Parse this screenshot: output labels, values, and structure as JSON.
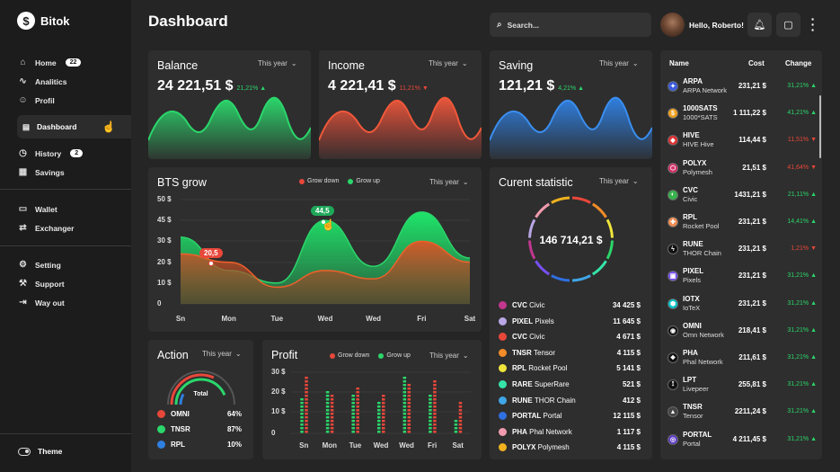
{
  "app": {
    "name": "Bitok"
  },
  "sidebar": {
    "group1": [
      {
        "label": "Home",
        "badge": "22",
        "icon": "home-icon"
      },
      {
        "label": "Analitics",
        "icon": "analytics-icon"
      },
      {
        "label": "Profil",
        "icon": "user-icon"
      }
    ],
    "active": {
      "label": "Dashboard",
      "icon": "dashboard-icon"
    },
    "group2": [
      {
        "label": "History",
        "badge": "2",
        "icon": "history-icon"
      },
      {
        "label": "Savings",
        "icon": "savings-icon"
      }
    ],
    "group3": [
      {
        "label": "Wallet",
        "icon": "wallet-icon"
      },
      {
        "label": "Exchanger",
        "icon": "exchange-icon"
      }
    ],
    "group4": [
      {
        "label": "Setting",
        "icon": "gear-icon"
      },
      {
        "label": "Support",
        "icon": "support-icon"
      },
      {
        "label": "Way out",
        "icon": "logout-icon"
      }
    ],
    "theme_label": "Theme"
  },
  "header": {
    "title": "Dashboard",
    "search_placeholder": "Search...",
    "greeting": "Hello, Roberto!"
  },
  "cards": {
    "balance": {
      "title": "Balance",
      "period": "This year",
      "value": "24 221,51 $",
      "pct": "21,21%",
      "trend": "up",
      "color": "#2bd66b"
    },
    "income": {
      "title": "Income",
      "period": "This year",
      "value": "4 221,41 $",
      "pct": "11,21%",
      "trend": "down",
      "color": "#e8473a"
    },
    "saving": {
      "title": "Saving",
      "period": "This year",
      "value": "121,21 $",
      "pct": "4,21%",
      "trend": "up",
      "color": "#2f7fe0"
    }
  },
  "bts": {
    "title": "BTS grow",
    "period": "This year",
    "legend_down": "Grow down",
    "legend_up": "Grow up",
    "chart_data": {
      "type": "area",
      "categories": [
        "Sn",
        "Mon",
        "Tue",
        "Wed",
        "Wed",
        "Fri",
        "Sat"
      ],
      "ylim": [
        0,
        50
      ],
      "yticks": [
        "50 $",
        "45 $",
        "30 $",
        "20 $",
        "10 $",
        "0"
      ],
      "series": [
        {
          "name": "Grow up",
          "values": [
            32,
            16,
            10,
            40,
            18,
            44,
            22
          ]
        },
        {
          "name": "Grow down",
          "values": [
            24,
            20,
            8,
            16,
            12,
            30,
            20
          ]
        }
      ],
      "annotations": [
        "20,5",
        "44,5"
      ]
    }
  },
  "statistic": {
    "title": "Curent statistic",
    "period": "This year",
    "total": "146 714,21 $",
    "rows": [
      {
        "sym": "CVC",
        "name": "Civic",
        "value": "34 425 $",
        "color": "#c2378f"
      },
      {
        "sym": "PIXEL",
        "name": "Pixels",
        "value": "11 645 $",
        "color": "#b9a7e6"
      },
      {
        "sym": "CVC",
        "name": "Civic",
        "value": "4 671 $",
        "color": "#e8473a"
      },
      {
        "sym": "TNSR",
        "name": "Tensor",
        "value": "4 115 $",
        "color": "#f28c28"
      },
      {
        "sym": "RPL",
        "name": "Rocket Pool",
        "value": "5 141 $",
        "color": "#f1e53b"
      },
      {
        "sym": "RARE",
        "name": "SuperRare",
        "value": "521 $",
        "color": "#36e3a8"
      },
      {
        "sym": "RUNE",
        "name": "THOR Chain",
        "value": "412 $",
        "color": "#3fa6e8"
      },
      {
        "sym": "PORTAL",
        "name": "Portal",
        "value": "12 115 $",
        "color": "#2f6fe0"
      },
      {
        "sym": "PHA",
        "name": "Phal Network",
        "value": "1 117 $",
        "color": "#f09cae"
      },
      {
        "sym": "POLYX",
        "name": "Polymesh",
        "value": "4 115 $",
        "color": "#f0b21f"
      }
    ]
  },
  "action": {
    "title": "Action",
    "period": "This year",
    "center": "Total",
    "rows": [
      {
        "label": "OMNI",
        "value": "64%",
        "color": "#e8473a"
      },
      {
        "label": "TNSR",
        "value": "87%",
        "color": "#2bd66b"
      },
      {
        "label": "RPL",
        "value": "10%",
        "color": "#2f7fe0"
      }
    ]
  },
  "profit": {
    "title": "Profit",
    "period": "This year",
    "legend_down": "Grow down",
    "legend_up": "Grow up",
    "chart_data": {
      "type": "bar",
      "categories": [
        "Sn",
        "Mon",
        "Tue",
        "Wed",
        "Wed",
        "Fri",
        "Sat"
      ],
      "ylim": [
        0,
        30
      ],
      "yticks": [
        "30 $",
        "20 $",
        "10 $",
        "0"
      ],
      "series": [
        {
          "name": "Grow up",
          "values": [
            18,
            22,
            20,
            17,
            28,
            20,
            8
          ]
        },
        {
          "name": "Grow down",
          "values": [
            28,
            20,
            23,
            20,
            25,
            27,
            16
          ]
        }
      ]
    }
  },
  "market": {
    "headers": {
      "name": "Name",
      "cost": "Cost",
      "change": "Change"
    },
    "rows": [
      {
        "sym": "ARPA",
        "name": "ARPA Network",
        "cost": "231,21 $",
        "change": "31,21%",
        "trend": "up",
        "color": "#3b5bdb"
      },
      {
        "sym": "1000SATS",
        "name": "1000*SATS",
        "cost": "1 111,22 $",
        "change": "41,21%",
        "trend": "up",
        "color": "#f0a020"
      },
      {
        "sym": "HIVE",
        "name": "HIVE Hive",
        "cost": "114,44 $",
        "change": "11,51%",
        "trend": "down",
        "color": "#e03131"
      },
      {
        "sym": "POLYX",
        "name": "Polymesh",
        "cost": "21,51 $",
        "change": "41,64%",
        "trend": "down",
        "color": "#d6336c"
      },
      {
        "sym": "CVC",
        "name": "Civic",
        "cost": "1431,21 $",
        "change": "21,11%",
        "trend": "up",
        "color": "#37b24d"
      },
      {
        "sym": "RPL",
        "name": "Rocket Pool",
        "cost": "231,21 $",
        "change": "14,41%",
        "trend": "up",
        "color": "#f08c50"
      },
      {
        "sym": "RUNE",
        "name": "THOR Chain",
        "cost": "231,21 $",
        "change": "1,21%",
        "trend": "down",
        "color": "#111111"
      },
      {
        "sym": "PIXEL",
        "name": "Pixels",
        "cost": "231,21 $",
        "change": "31,21%",
        "trend": "up",
        "color": "#7950f2"
      },
      {
        "sym": "IOTX",
        "name": "IoTeX",
        "cost": "231,21 $",
        "change": "31,21%",
        "trend": "up",
        "color": "#00c2c7"
      },
      {
        "sym": "OMNI",
        "name": "Omn Network",
        "cost": "218,41 $",
        "change": "31,21%",
        "trend": "up",
        "color": "#111111"
      },
      {
        "sym": "PHA",
        "name": "Phal Network",
        "cost": "211,61 $",
        "change": "31,21%",
        "trend": "up",
        "color": "#111111"
      },
      {
        "sym": "LPT",
        "name": "Livepeer",
        "cost": "255,81 $",
        "change": "31,21%",
        "trend": "up",
        "color": "#111111"
      },
      {
        "sym": "TNSR",
        "name": "Tensor",
        "cost": "2211,24 $",
        "change": "31,21%",
        "trend": "up",
        "color": "#444444"
      },
      {
        "sym": "PORTAL",
        "name": "Portal",
        "cost": "4 211,45 $",
        "change": "31,21%",
        "trend": "up",
        "color": "#5f3dc4"
      }
    ]
  }
}
